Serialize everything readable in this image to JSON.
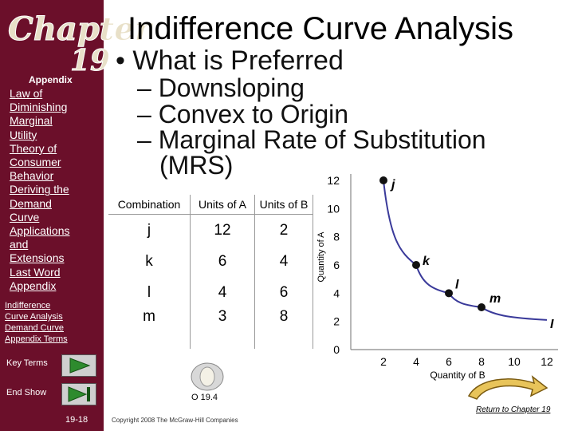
{
  "sidebar": {
    "logo_text": "Chapter",
    "logo_number": "19",
    "appendix_heading": "Appendix",
    "items": [
      {
        "label": "Law of\nDiminishing\nMarginal\nUtility"
      },
      {
        "label": "Theory of\nConsumer\nBehavior"
      },
      {
        "label": "Deriving the\nDemand\nCurve"
      },
      {
        "label": "Applications\nand\nExtensions"
      },
      {
        "label": "Last Word"
      },
      {
        "label": "Appendix"
      }
    ],
    "sub_items": [
      {
        "label": "Indifference"
      },
      {
        "label": "Curve Analysis"
      },
      {
        "label": "Demand Curve"
      },
      {
        "label": "Appendix Terms"
      }
    ],
    "key_terms_label": "Key Terms",
    "end_show_label": "End Show",
    "page_number": "19-18"
  },
  "slide": {
    "title": "Indifference Curve Analysis",
    "bullet": "• What is Preferred",
    "subs": [
      "– Downsloping",
      "– Convex to Origin",
      "– Marginal Rate of Substitution",
      "(MRS)"
    ],
    "slide_id": "O 19.4",
    "copyright": "Copyright 2008 The McGraw-Hill Companies",
    "return_label": "Return to Chapter 19"
  },
  "table": {
    "headers": [
      "Combination",
      "Units of A",
      "Units of B"
    ],
    "rows": [
      [
        "j",
        "12",
        "2"
      ],
      [
        "k",
        "6",
        "4"
      ],
      [
        "l",
        "4",
        "6"
      ],
      [
        "m",
        "3",
        "8"
      ]
    ]
  },
  "chart_data": {
    "type": "line",
    "xlabel": "Quantity of B",
    "ylabel": "Quantity of A",
    "x_ticks": [
      "2",
      "4",
      "6",
      "8",
      "10",
      "12"
    ],
    "y_ticks": [
      "0",
      "2",
      "4",
      "6",
      "8",
      "10",
      "12"
    ],
    "xlim": [
      0,
      12
    ],
    "ylim": [
      0,
      12
    ],
    "series": [
      {
        "name": "I",
        "points": [
          {
            "label": "j",
            "x": 2,
            "y": 12
          },
          {
            "label": "k",
            "x": 4,
            "y": 6
          },
          {
            "label": "l",
            "x": 6,
            "y": 4
          },
          {
            "label": "m",
            "x": 8,
            "y": 3
          },
          {
            "label": "",
            "x": 12,
            "y": 2.1
          }
        ]
      }
    ],
    "curve_color": "#3a3a9a"
  }
}
